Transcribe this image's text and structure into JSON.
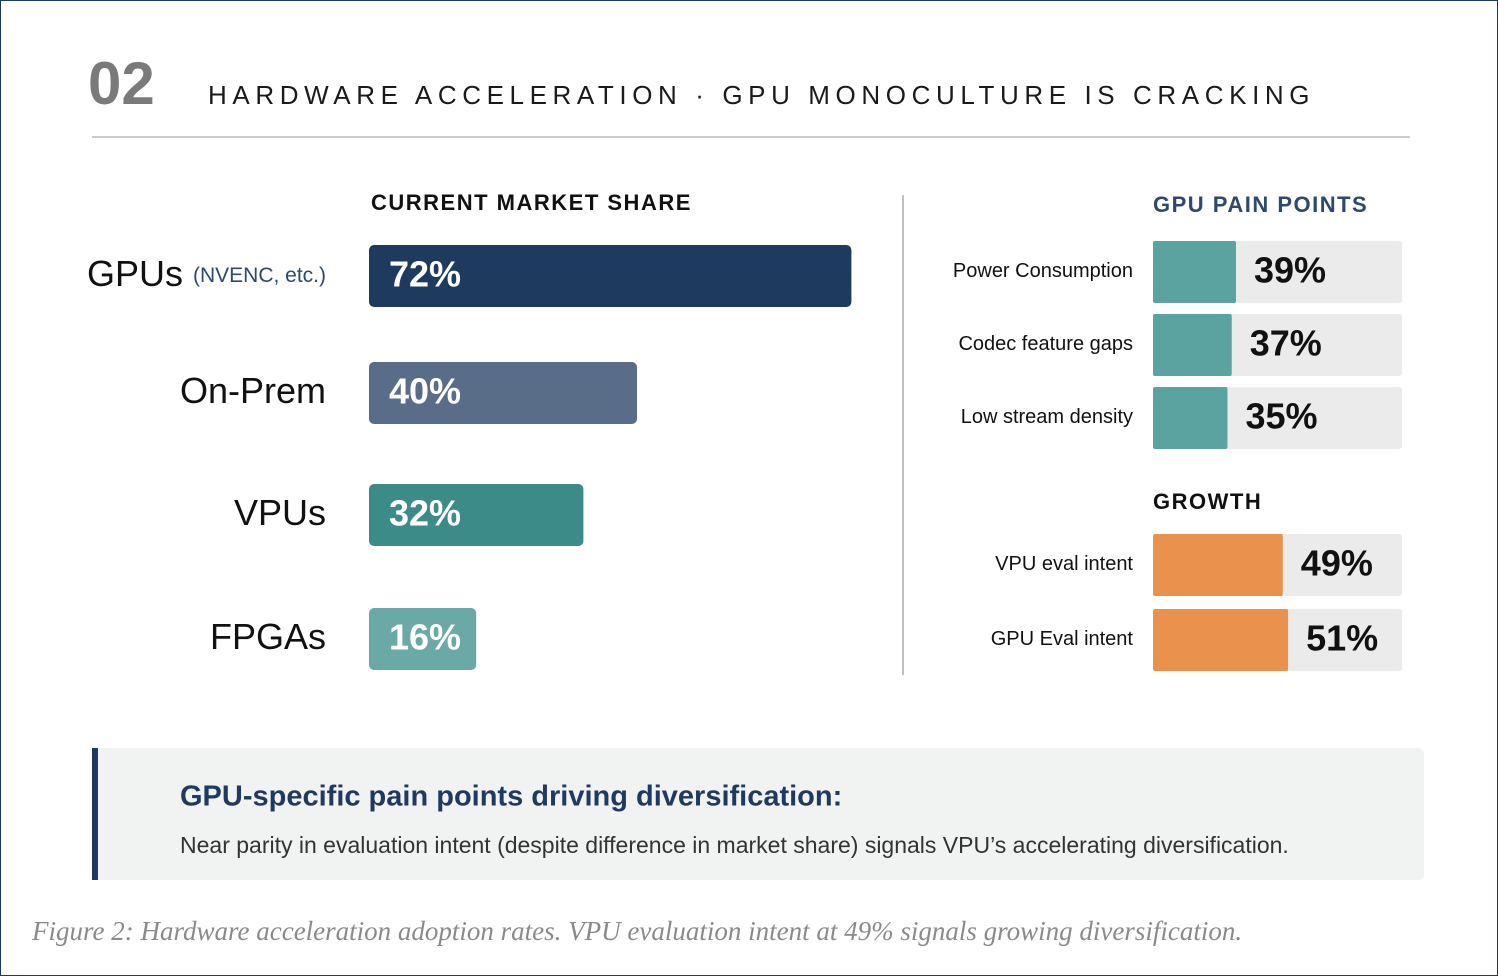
{
  "header": {
    "number": "02",
    "title": "HARDWARE ACCELERATION · GPU MONOCULTURE IS CRACKING"
  },
  "chart_data": [
    {
      "type": "bar",
      "orientation": "horizontal",
      "title": "CURRENT MARKET SHARE",
      "categories": [
        "GPUs",
        "On-Prem",
        "VPUs",
        "FPGAs"
      ],
      "annotations": [
        "(NVENC, etc.)",
        null,
        null,
        null
      ],
      "values": [
        72,
        40,
        32,
        16
      ],
      "value_labels": [
        "72%",
        "40%",
        "32%",
        "16%"
      ],
      "colors": [
        "#1f3a5f",
        "#596d88",
        "#3d8b89",
        "#6aa9a6"
      ],
      "xlim": [
        0,
        100
      ]
    },
    {
      "type": "bar",
      "orientation": "horizontal",
      "title": "GPU PAIN POINTS",
      "categories": [
        "Power Consumption",
        "Codec feature gaps",
        "Low stream density"
      ],
      "values": [
        39,
        37,
        35
      ],
      "value_labels": [
        "39%",
        "37%",
        "35%"
      ],
      "color": "#5ba3a1",
      "track_color": "#ebebeb",
      "xlim": [
        0,
        117
      ]
    },
    {
      "type": "bar",
      "orientation": "horizontal",
      "title": "GROWTH",
      "categories": [
        "VPU eval intent",
        "GPU Eval intent"
      ],
      "values": [
        49,
        51
      ],
      "value_labels": [
        "49%",
        "51%"
      ],
      "color": "#e8924e",
      "track_color": "#ebebeb",
      "xlim": [
        0,
        94
      ]
    }
  ],
  "callout": {
    "title": "GPU-specific pain points driving diversification:",
    "text": "Near parity in evaluation intent (despite difference in market share) signals VPU’s accelerating diversification."
  },
  "caption": "Figure 2: Hardware acceleration adoption rates. VPU evaluation intent at 49% signals growing diversification."
}
